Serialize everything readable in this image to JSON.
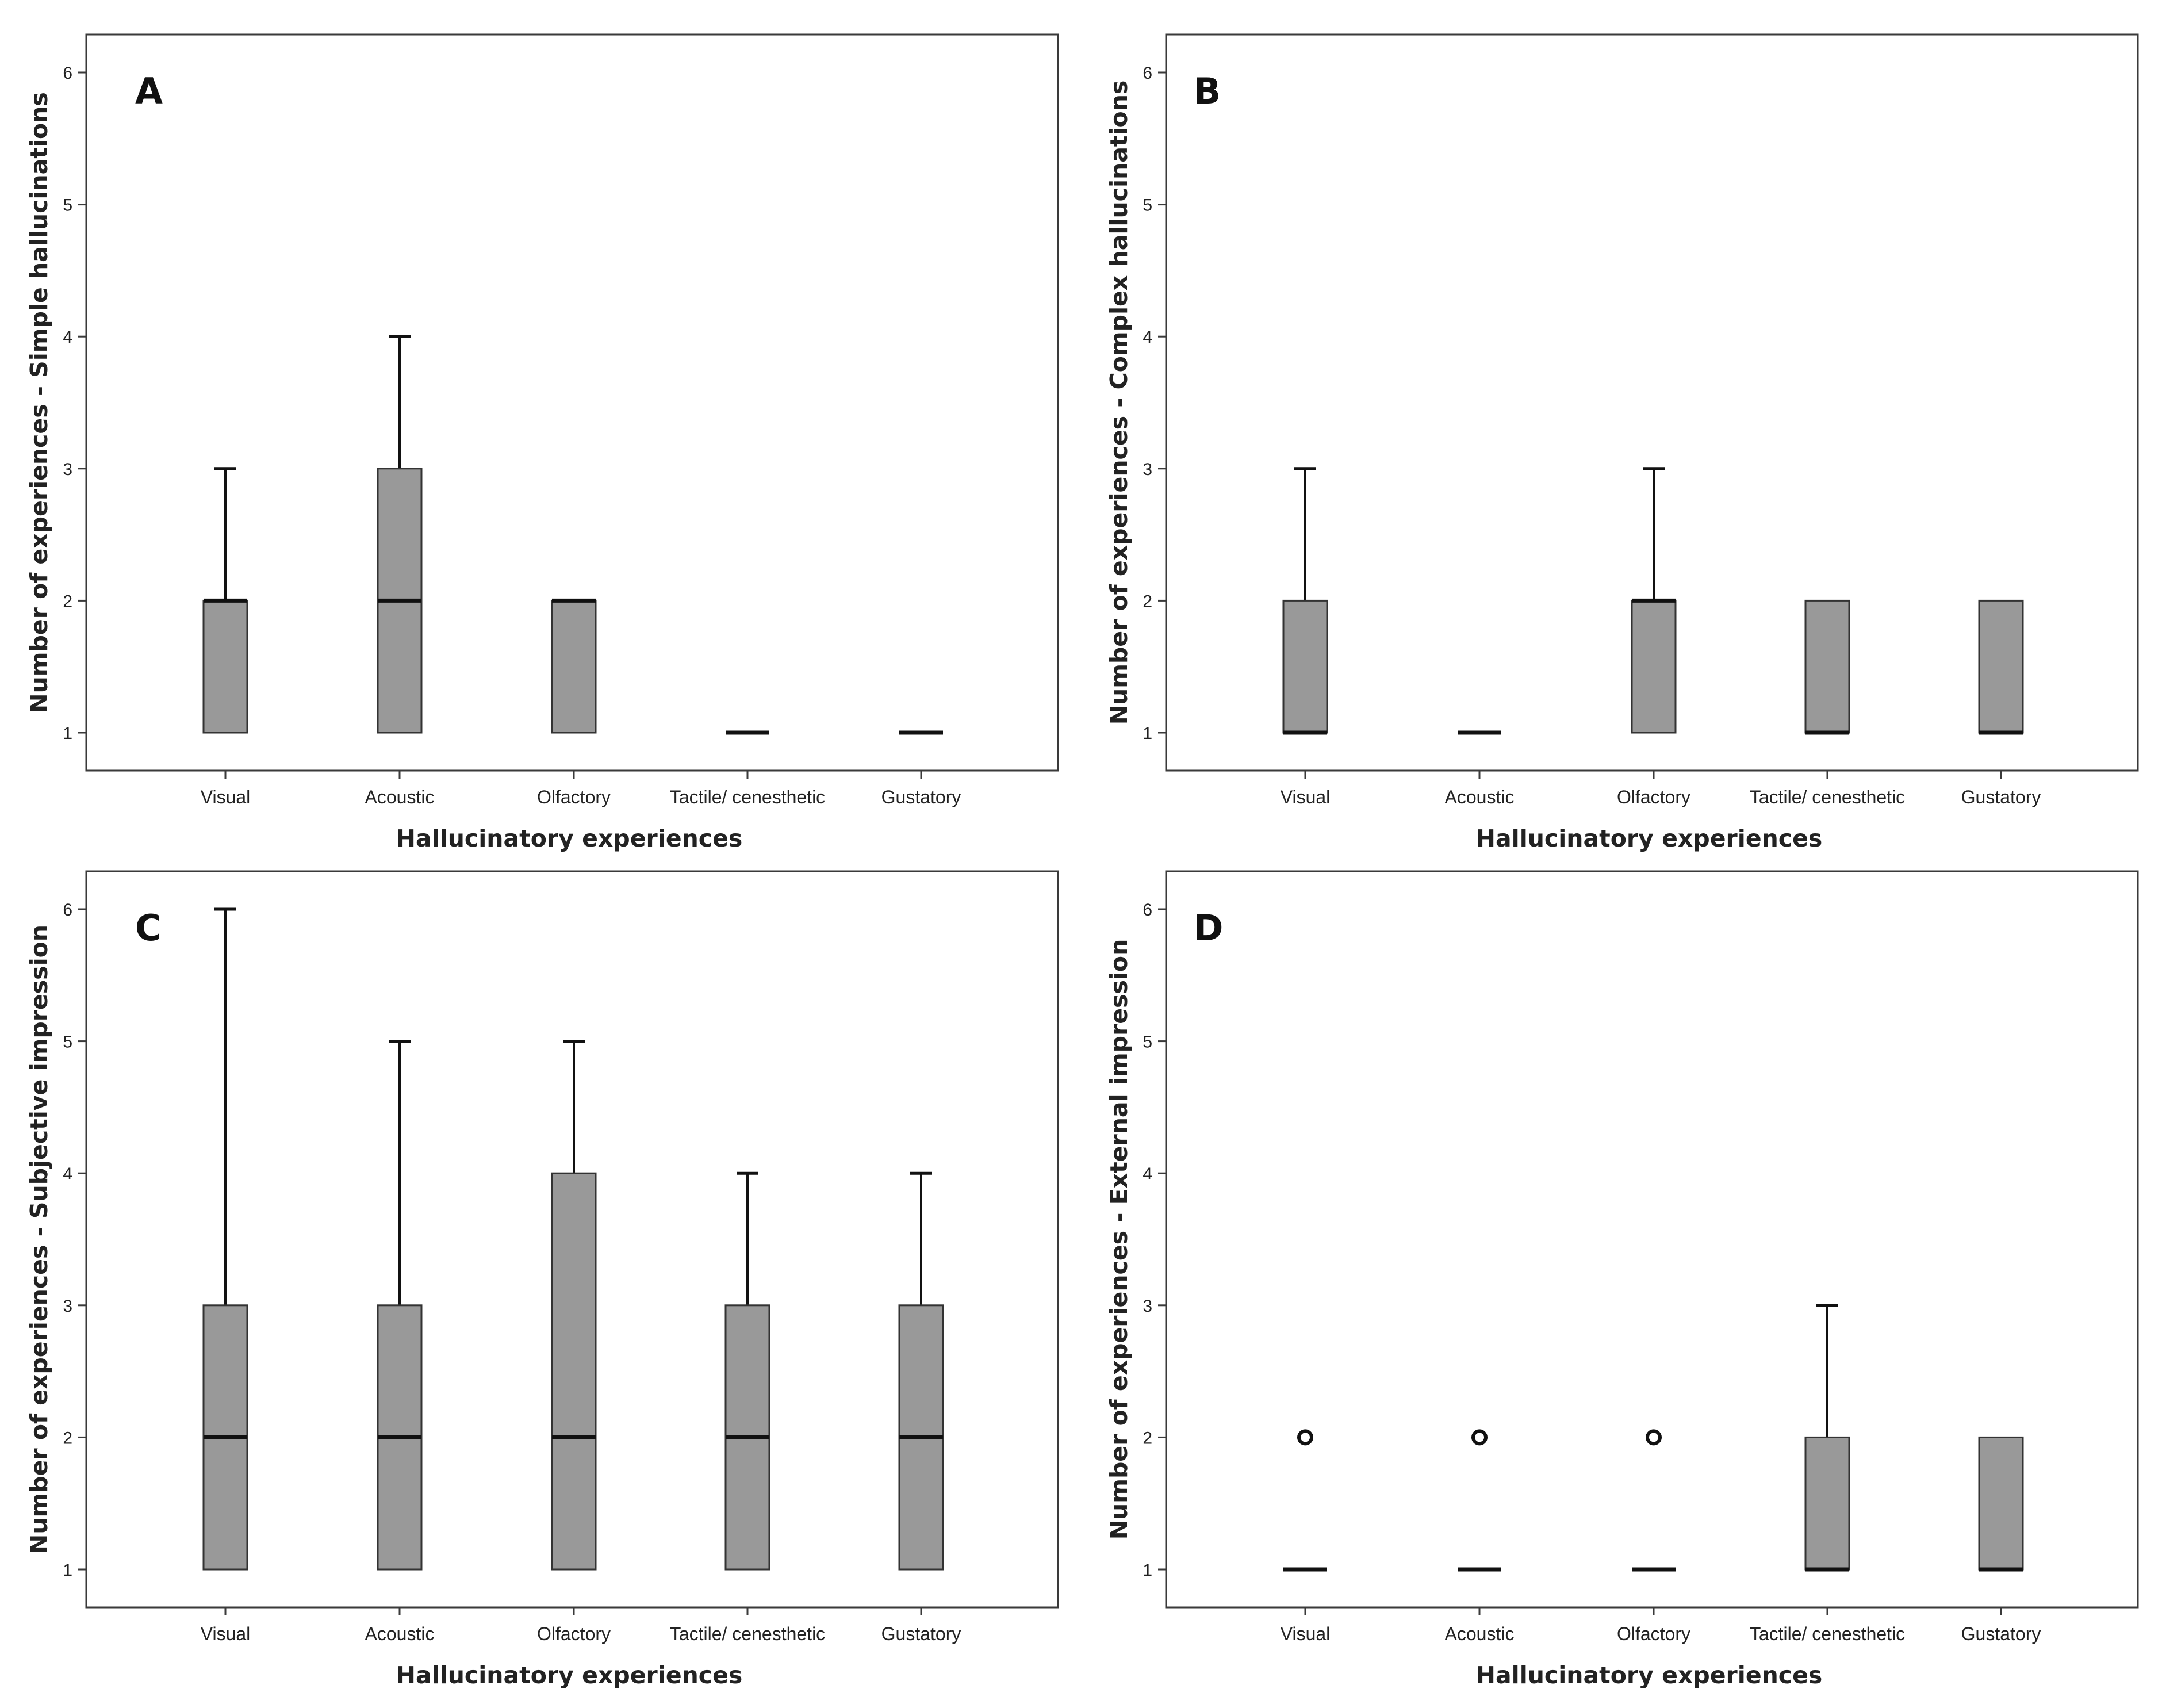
{
  "chart_data": [
    {
      "type": "boxplot",
      "panel": "A",
      "xlabel": "Hallucinatory experiences",
      "ylabel": "Number of experiences - Simple hallucinations",
      "ylim": [
        1,
        6
      ],
      "yticks": [
        1,
        2,
        3,
        4,
        5,
        6
      ],
      "categories": [
        "Visual",
        "Acoustic",
        "Olfactory",
        "Tactile/ cenesthetic",
        "Gustatory"
      ],
      "boxes": [
        {
          "min": 1,
          "q1": 1,
          "median": 2,
          "q3": 2,
          "max": 3,
          "outliers": []
        },
        {
          "min": 1,
          "q1": 1,
          "median": 2,
          "q3": 3,
          "max": 4,
          "outliers": []
        },
        {
          "min": 1,
          "q1": 1,
          "median": 2,
          "q3": 2,
          "max": 2,
          "outliers": []
        },
        {
          "min": 1,
          "q1": 1,
          "median": 1,
          "q3": 1,
          "max": 1,
          "outliers": []
        },
        {
          "min": 1,
          "q1": 1,
          "median": 1,
          "q3": 1,
          "max": 1,
          "outliers": []
        }
      ]
    },
    {
      "type": "boxplot",
      "panel": "B",
      "xlabel": "Hallucinatory experiences",
      "ylabel": "Number of experiences - Complex hallucinations",
      "ylim": [
        1,
        6
      ],
      "yticks": [
        1,
        2,
        3,
        4,
        5,
        6
      ],
      "categories": [
        "Visual",
        "Acoustic",
        "Olfactory",
        "Tactile/ cenesthetic",
        "Gustatory"
      ],
      "boxes": [
        {
          "min": 1,
          "q1": 1,
          "median": 1,
          "q3": 2,
          "max": 3,
          "outliers": []
        },
        {
          "min": 1,
          "q1": 1,
          "median": 1,
          "q3": 1,
          "max": 1,
          "outliers": []
        },
        {
          "min": 1,
          "q1": 1,
          "median": 2,
          "q3": 2,
          "max": 3,
          "outliers": []
        },
        {
          "min": 1,
          "q1": 1,
          "median": 1,
          "q3": 2,
          "max": 2,
          "outliers": []
        },
        {
          "min": 1,
          "q1": 1,
          "median": 1,
          "q3": 2,
          "max": 2,
          "outliers": []
        }
      ]
    },
    {
      "type": "boxplot",
      "panel": "C",
      "xlabel": "Hallucinatory experiences",
      "ylabel": "Number of experiences - Subjective impression",
      "ylim": [
        1,
        6
      ],
      "yticks": [
        1,
        2,
        3,
        4,
        5,
        6
      ],
      "categories": [
        "Visual",
        "Acoustic",
        "Olfactory",
        "Tactile/ cenesthetic",
        "Gustatory"
      ],
      "boxes": [
        {
          "min": 1,
          "q1": 1,
          "median": 2,
          "q3": 3,
          "max": 6,
          "outliers": []
        },
        {
          "min": 1,
          "q1": 1,
          "median": 2,
          "q3": 3,
          "max": 5,
          "outliers": []
        },
        {
          "min": 1,
          "q1": 1,
          "median": 2,
          "q3": 4,
          "max": 5,
          "outliers": []
        },
        {
          "min": 1,
          "q1": 1,
          "median": 2,
          "q3": 3,
          "max": 4,
          "outliers": []
        },
        {
          "min": 1,
          "q1": 1,
          "median": 2,
          "q3": 3,
          "max": 4,
          "outliers": []
        }
      ]
    },
    {
      "type": "boxplot",
      "panel": "D",
      "xlabel": "Hallucinatory experiences",
      "ylabel": "Number of experiences - External impression",
      "ylim": [
        1,
        6
      ],
      "yticks": [
        1,
        2,
        3,
        4,
        5,
        6
      ],
      "categories": [
        "Visual",
        "Acoustic",
        "Olfactory",
        "Tactile/ cenesthetic",
        "Gustatory"
      ],
      "boxes": [
        {
          "min": 1,
          "q1": 1,
          "median": 1,
          "q3": 1,
          "max": 1,
          "outliers": [
            2
          ]
        },
        {
          "min": 1,
          "q1": 1,
          "median": 1,
          "q3": 1,
          "max": 1,
          "outliers": [
            2
          ]
        },
        {
          "min": 1,
          "q1": 1,
          "median": 1,
          "q3": 1,
          "max": 1,
          "outliers": [
            2
          ]
        },
        {
          "min": 1,
          "q1": 1,
          "median": 1,
          "q3": 2,
          "max": 3,
          "outliers": []
        },
        {
          "min": 1,
          "q1": 1,
          "median": 1,
          "q3": 2,
          "max": 2,
          "outliers": []
        }
      ]
    }
  ],
  "colors": {
    "box_fill": "#999999",
    "box_stroke": "#333333",
    "frame": "#3a3a3a",
    "background": "#ffffff"
  }
}
